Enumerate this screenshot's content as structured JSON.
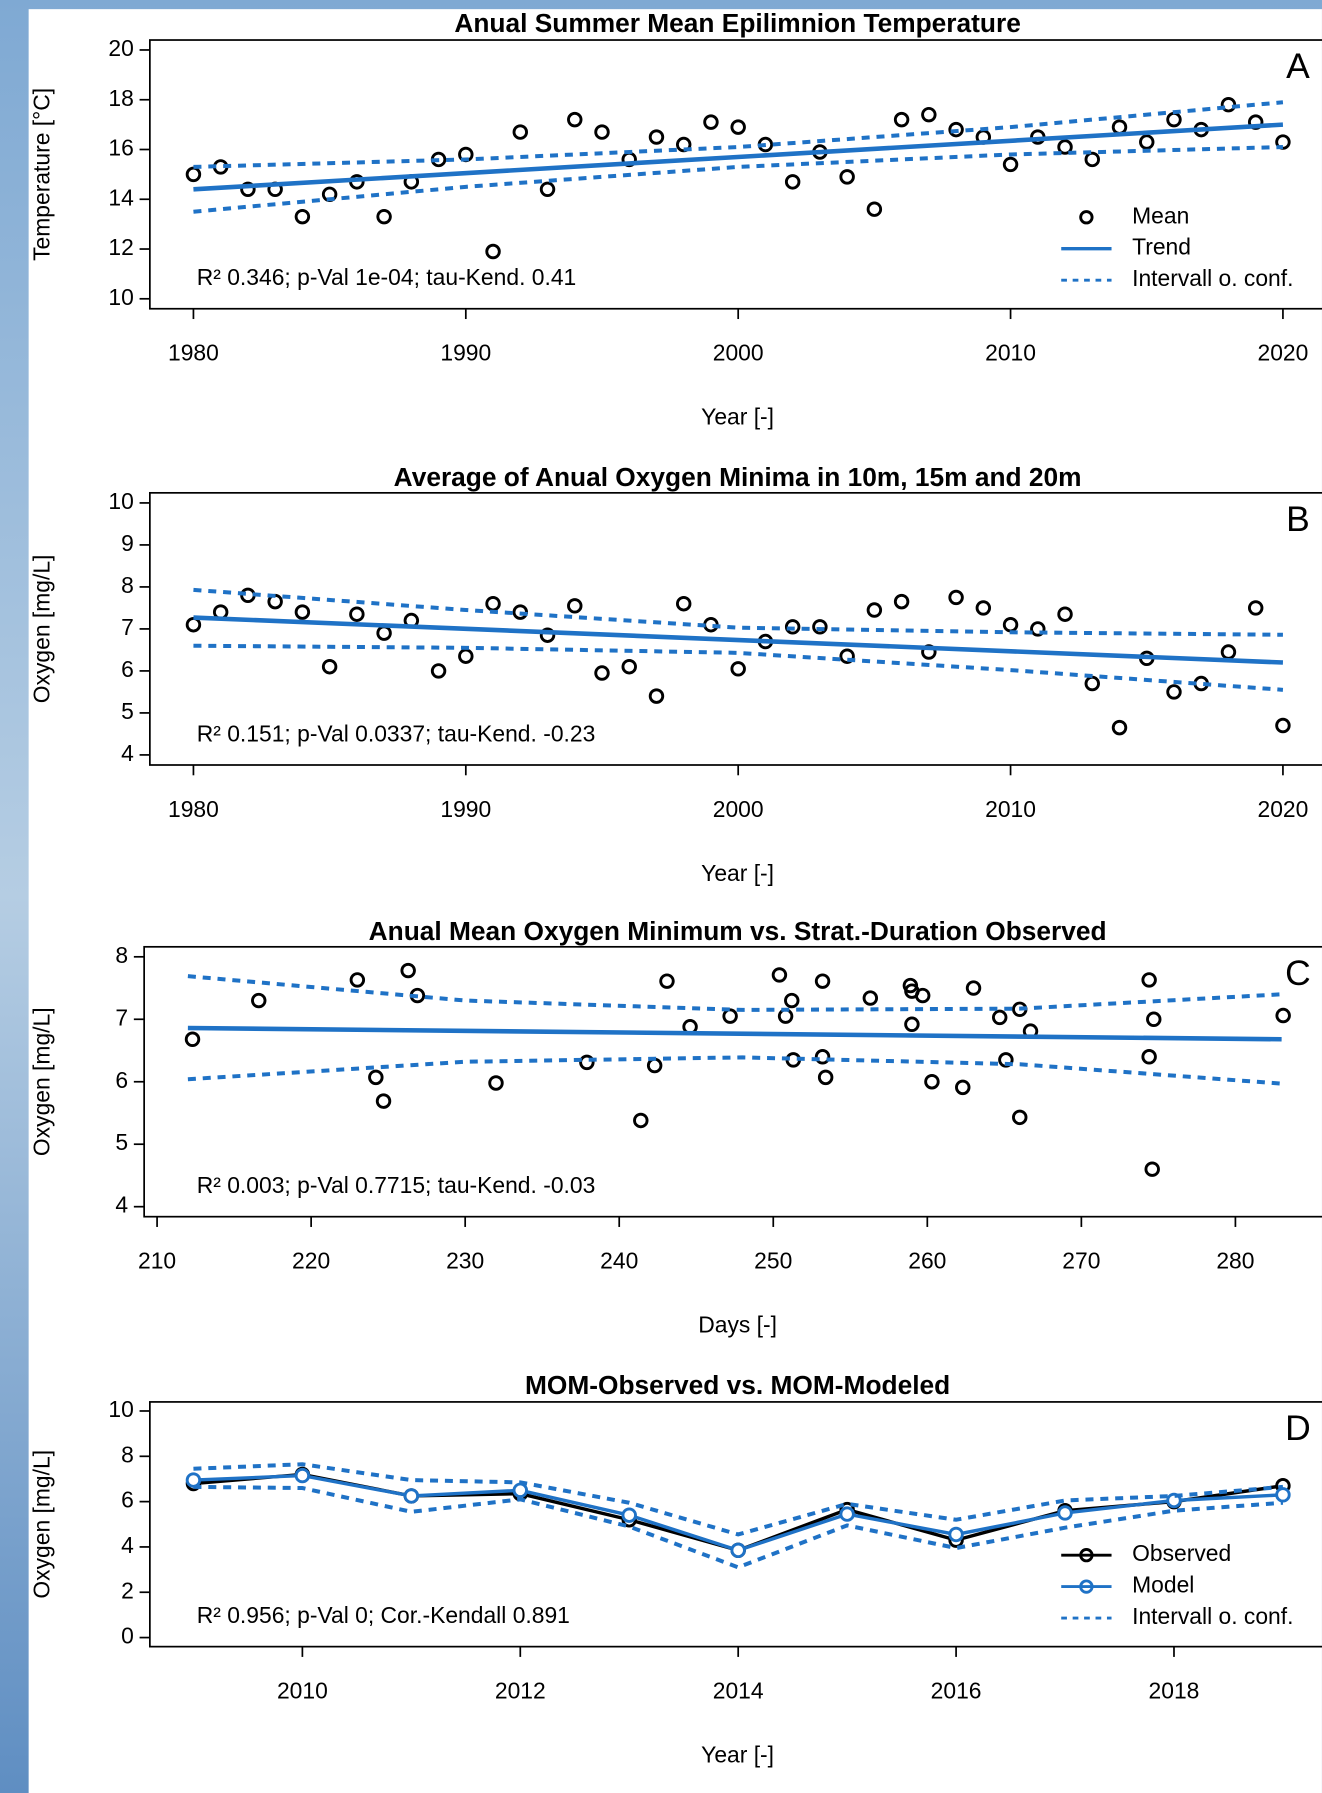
{
  "chart_data": [
    {
      "type": "scatter",
      "title": "Anual Summer Mean Epilimnion Temperature",
      "panel_label": "A",
      "annotation": "R² 0.346; p-Val 1e-04; tau-Kend. 0.41",
      "xlabel": "Year [-]",
      "ylabel": "Temperature [°C]",
      "x": [
        1980,
        1981,
        1982,
        1983,
        1984,
        1985,
        1986,
        1987,
        1988,
        1989,
        1990,
        1991,
        1992,
        1993,
        1994,
        1995,
        1996,
        1997,
        1998,
        1999,
        2000,
        2001,
        2002,
        2003,
        2004,
        2005,
        2006,
        2007,
        2008,
        2009,
        2010,
        2011,
        2012,
        2013,
        2014,
        2015,
        2016,
        2017,
        2018,
        2019,
        2020
      ],
      "xlim": [
        1978.4,
        2021.6
      ],
      "xticks": [
        1980,
        1990,
        2000,
        2010,
        2020
      ],
      "ylim": [
        9.6,
        20.4
      ],
      "yticks": [
        10,
        12,
        14,
        16,
        18,
        20
      ],
      "legend": "bottom-right",
      "series": [
        {
          "name": "Mean",
          "style": "points",
          "color": "#000000",
          "values": [
            15.0,
            15.3,
            14.4,
            14.4,
            13.3,
            14.2,
            14.7,
            13.3,
            14.7,
            15.6,
            15.8,
            11.9,
            16.7,
            14.4,
            17.2,
            16.7,
            15.6,
            16.5,
            16.2,
            17.1,
            16.9,
            16.2,
            14.7,
            15.9,
            14.9,
            13.6,
            17.2,
            17.4,
            16.8,
            16.5,
            15.4,
            16.5,
            16.1,
            15.6,
            16.9,
            16.3,
            17.2,
            16.8,
            17.8,
            17.1,
            16.3
          ]
        },
        {
          "name": "Trend",
          "style": "line",
          "color": "#1f72c6",
          "x": [
            1980,
            2020
          ],
          "values": [
            14.4,
            17.0
          ]
        },
        {
          "name": "Intervall o. conf.",
          "style": "dashed",
          "color": "#1f72c6",
          "x": [
            1980,
            1990,
            2000,
            2010,
            2020
          ],
          "upper": [
            15.3,
            15.6,
            16.1,
            16.9,
            17.9
          ],
          "lower": [
            13.5,
            14.5,
            15.3,
            15.8,
            16.1
          ]
        }
      ]
    },
    {
      "type": "scatter",
      "title": "Average of Anual Oxygen Minima in 10m, 15m and 20m",
      "panel_label": "B",
      "annotation": "R² 0.151; p-Val 0.0337; tau-Kend. -0.23",
      "xlabel": "Year [-]",
      "ylabel": "Oxygen [mg/L]",
      "x": [
        1980,
        1981,
        1982,
        1983,
        1984,
        1985,
        1986,
        1987,
        1988,
        1989,
        1990,
        1991,
        1992,
        1993,
        1994,
        1995,
        1996,
        1997,
        1998,
        1999,
        2000,
        2001,
        2002,
        2003,
        2004,
        2005,
        2006,
        2007,
        2008,
        2009,
        2010,
        2011,
        2012,
        2013,
        2014,
        2015,
        2016,
        2017,
        2018,
        2019,
        2020
      ],
      "xlim": [
        1978.4,
        2021.6
      ],
      "xticks": [
        1980,
        1990,
        2000,
        2010,
        2020
      ],
      "ylim": [
        3.76,
        10.24
      ],
      "yticks": [
        4,
        5,
        6,
        7,
        8,
        9,
        10
      ],
      "series": [
        {
          "style": "points",
          "color": "#000000",
          "values": [
            7.1,
            7.4,
            7.8,
            7.65,
            7.4,
            6.1,
            7.35,
            6.9,
            7.2,
            6.0,
            6.35,
            7.6,
            7.4,
            6.85,
            7.55,
            5.95,
            6.1,
            5.4,
            7.6,
            7.1,
            6.05,
            6.7,
            7.05,
            7.05,
            6.35,
            7.45,
            7.65,
            6.45,
            7.75,
            7.5,
            7.1,
            7.0,
            7.35,
            5.7,
            4.65,
            6.3,
            5.5,
            5.7,
            6.45,
            7.5,
            4.7
          ]
        },
        {
          "style": "line",
          "color": "#1f72c6",
          "x": [
            1980,
            2020
          ],
          "values": [
            7.27,
            6.2
          ]
        },
        {
          "style": "dashed",
          "color": "#1f72c6",
          "x": [
            1980,
            1990,
            2000,
            2010,
            2020
          ],
          "upper": [
            7.93,
            7.45,
            7.03,
            6.92,
            6.86
          ],
          "lower": [
            6.6,
            6.55,
            6.43,
            6.02,
            5.55
          ]
        }
      ]
    },
    {
      "type": "scatter",
      "title": "Anual Mean Oxygen Minimum vs. Strat.-Duration Observed",
      "panel_label": "C",
      "annotation": "R² 0.003; p-Val 0.7715; tau-Kend. -0.03",
      "xlabel": "Days [-]",
      "ylabel": "Oxygen [mg/L]",
      "x": [
        212.3,
        216.6,
        223.0,
        224.2,
        224.7,
        226.3,
        226.9,
        232.0,
        237.9,
        241.4,
        242.3,
        243.1,
        244.6,
        247.2,
        250.4,
        250.8,
        251.2,
        251.3,
        253.2,
        253.2,
        253.4,
        256.3,
        258.9,
        259.0,
        259.0,
        259.7,
        260.3,
        262.3,
        263.0,
        264.7,
        265.1,
        266.0,
        266.0,
        266.7,
        274.4,
        274.4,
        274.6,
        274.7,
        283.1
      ],
      "xlim": [
        209.16,
        285.84
      ],
      "xticks": [
        210,
        220,
        230,
        240,
        250,
        260,
        270,
        280
      ],
      "ylim": [
        3.84,
        8.16
      ],
      "yticks": [
        4,
        5,
        6,
        7,
        8
      ],
      "series": [
        {
          "style": "points",
          "color": "#000000",
          "values": [
            6.68,
            7.3,
            7.63,
            6.07,
            5.69,
            7.78,
            7.38,
            5.98,
            6.31,
            5.38,
            6.26,
            7.61,
            6.88,
            7.05,
            7.71,
            7.05,
            7.3,
            6.35,
            7.61,
            6.4,
            6.07,
            7.34,
            7.54,
            7.45,
            6.92,
            7.38,
            6.0,
            5.91,
            7.5,
            7.03,
            6.35,
            7.16,
            5.43,
            6.81,
            7.63,
            6.4,
            4.6,
            7.0,
            7.06
          ]
        },
        {
          "style": "line",
          "color": "#1f72c6",
          "x": [
            212,
            283
          ],
          "values": [
            6.86,
            6.68
          ]
        },
        {
          "style": "dashed",
          "color": "#1f72c6",
          "x": [
            212,
            230,
            248,
            266,
            283
          ],
          "upper": [
            7.69,
            7.3,
            7.15,
            7.17,
            7.4
          ],
          "lower": [
            6.04,
            6.32,
            6.39,
            6.28,
            5.97
          ]
        }
      ]
    },
    {
      "type": "line",
      "title": "MOM-Observed vs. MOM-Modeled",
      "panel_label": "D",
      "annotation": "R² 0.956; p-Val 0; Cor.-Kendall 0.891",
      "xlabel": "Year [-]",
      "ylabel": "Oxygen [mg/L]",
      "x": [
        2009,
        2010,
        2011,
        2012,
        2013,
        2014,
        2015,
        2016,
        2017,
        2018,
        2019
      ],
      "xlim": [
        2008.6,
        2019.4
      ],
      "xticks": [
        2010,
        2012,
        2014,
        2016,
        2018
      ],
      "ylim": [
        -0.4,
        10.4
      ],
      "yticks": [
        0,
        2,
        4,
        6,
        8,
        10
      ],
      "legend": "bottom-right",
      "series": [
        {
          "name": "Observed",
          "style": "line-points",
          "color": "#000000",
          "values": [
            6.8,
            7.2,
            6.25,
            6.35,
            5.2,
            3.85,
            5.65,
            4.3,
            5.6,
            6.0,
            6.7
          ]
        },
        {
          "name": "Model",
          "style": "line-points",
          "color": "#1f72c6",
          "values": [
            6.95,
            7.15,
            6.25,
            6.5,
            5.4,
            3.85,
            5.45,
            4.55,
            5.5,
            6.05,
            6.3
          ]
        },
        {
          "name": "Intervall o. conf.",
          "style": "dashed",
          "color": "#1f72c6",
          "upper": [
            7.45,
            7.65,
            6.95,
            6.85,
            5.95,
            4.55,
            5.9,
            5.2,
            6.05,
            6.25,
            6.65
          ],
          "lower": [
            6.65,
            6.6,
            5.55,
            6.1,
            4.9,
            3.1,
            4.95,
            3.95,
            4.85,
            5.6,
            5.95
          ]
        }
      ]
    }
  ]
}
